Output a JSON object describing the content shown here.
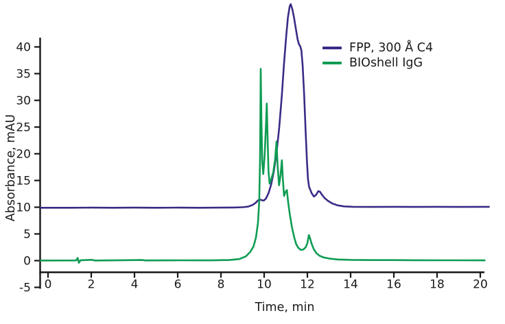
{
  "axes": {
    "x_label": "Time, min",
    "y_label": "Absorbance, mAU"
  },
  "legend": {
    "items": [
      {
        "label": "FPP, 300 Å C4",
        "color": "#3b2a86"
      },
      {
        "label": "BIOshell IgG",
        "color": "#0e9c53"
      }
    ]
  },
  "colors": {
    "axis": "#161616",
    "background": "#ffffff",
    "purple_trace": "#3b2a86",
    "green_trace": "#0e9c53"
  },
  "chart_data": {
    "type": "line",
    "title": "",
    "xlabel": "Time, min",
    "ylabel": "Absorbance, mAU",
    "xlim": [
      -0.4,
      20.4
    ],
    "ylim": [
      -5,
      48
    ],
    "x_ticks": [
      0,
      2,
      4,
      6,
      8,
      10,
      12,
      14,
      16,
      18,
      20
    ],
    "y_ticks": [
      -5,
      0,
      5,
      10,
      15,
      20,
      25,
      30,
      35,
      40
    ],
    "grid": false,
    "legend_position": "upper-right-inside",
    "series": [
      {
        "name": "FPP, 300 Å C4",
        "color": "#3b2a86",
        "baseline_mAU": 10,
        "main_peak_time_min": 11.2,
        "main_peak_mAU": 48,
        "points": [
          [
            -0.35,
            9.9
          ],
          [
            1,
            9.9
          ],
          [
            2,
            9.92
          ],
          [
            3,
            9.9
          ],
          [
            4,
            9.92
          ],
          [
            5,
            9.9
          ],
          [
            6,
            9.92
          ],
          [
            7,
            9.9
          ],
          [
            8,
            9.92
          ],
          [
            8.6,
            9.95
          ],
          [
            9.0,
            10.0
          ],
          [
            9.25,
            10.1
          ],
          [
            9.45,
            10.4
          ],
          [
            9.6,
            10.8
          ],
          [
            9.72,
            11.3
          ],
          [
            9.8,
            11.45
          ],
          [
            9.9,
            11.3
          ],
          [
            9.98,
            11.25
          ],
          [
            10.08,
            11.6
          ],
          [
            10.2,
            12.6
          ],
          [
            10.32,
            14.2
          ],
          [
            10.45,
            16.8
          ],
          [
            10.58,
            20.5
          ],
          [
            10.7,
            25
          ],
          [
            10.82,
            31
          ],
          [
            10.92,
            37
          ],
          [
            11.02,
            42
          ],
          [
            11.1,
            45.5
          ],
          [
            11.18,
            47.6
          ],
          [
            11.23,
            48.0
          ],
          [
            11.3,
            47.1
          ],
          [
            11.38,
            45.5
          ],
          [
            11.47,
            43.3
          ],
          [
            11.55,
            41.4
          ],
          [
            11.61,
            40.5
          ],
          [
            11.67,
            40.1
          ],
          [
            11.72,
            39.4
          ],
          [
            11.78,
            36.5
          ],
          [
            11.85,
            31
          ],
          [
            11.92,
            24
          ],
          [
            11.98,
            18.5
          ],
          [
            12.03,
            15.2
          ],
          [
            12.08,
            13.8
          ],
          [
            12.13,
            13.3
          ],
          [
            12.2,
            12.6
          ],
          [
            12.3,
            12.0
          ],
          [
            12.4,
            12.3
          ],
          [
            12.5,
            13.0
          ],
          [
            12.58,
            12.9
          ],
          [
            12.68,
            12.3
          ],
          [
            12.8,
            11.7
          ],
          [
            12.95,
            11.2
          ],
          [
            13.15,
            10.7
          ],
          [
            13.4,
            10.35
          ],
          [
            13.7,
            10.15
          ],
          [
            14.1,
            10.08
          ],
          [
            15,
            10.05
          ],
          [
            16,
            10.08
          ],
          [
            17,
            10.05
          ],
          [
            18,
            10.08
          ],
          [
            19,
            10.05
          ],
          [
            20.4,
            10.08
          ]
        ]
      },
      {
        "name": "BIOshell IgG",
        "color": "#0e9c53",
        "baseline_mAU": 0,
        "main_peak_time_min": 9.85,
        "main_peak_mAU": 36,
        "points": [
          [
            -0.35,
            0.02
          ],
          [
            1.3,
            0.04
          ],
          [
            1.37,
            0.5
          ],
          [
            1.43,
            -0.4
          ],
          [
            1.5,
            0.08
          ],
          [
            2.05,
            0.15
          ],
          [
            2.15,
            0.03
          ],
          [
            3,
            0.05
          ],
          [
            4.35,
            0.12
          ],
          [
            4.5,
            0.04
          ],
          [
            6,
            0.06
          ],
          [
            7.5,
            0.05
          ],
          [
            8.4,
            0.12
          ],
          [
            8.85,
            0.3
          ],
          [
            9.15,
            0.8
          ],
          [
            9.35,
            1.6
          ],
          [
            9.5,
            2.6
          ],
          [
            9.62,
            4.3
          ],
          [
            9.71,
            7
          ],
          [
            9.77,
            11
          ],
          [
            9.81,
            19
          ],
          [
            9.84,
            35.9
          ],
          [
            9.87,
            27
          ],
          [
            9.91,
            18.5
          ],
          [
            9.96,
            16.2
          ],
          [
            10.02,
            19.5
          ],
          [
            10.08,
            25
          ],
          [
            10.12,
            29.4
          ],
          [
            10.16,
            23
          ],
          [
            10.2,
            16.8
          ],
          [
            10.25,
            14.4
          ],
          [
            10.33,
            15.3
          ],
          [
            10.42,
            16.5
          ],
          [
            10.5,
            18.8
          ],
          [
            10.57,
            22.3
          ],
          [
            10.62,
            18
          ],
          [
            10.69,
            14.1
          ],
          [
            10.76,
            16
          ],
          [
            10.82,
            18.8
          ],
          [
            10.87,
            15
          ],
          [
            10.92,
            12.1
          ],
          [
            10.99,
            12.9
          ],
          [
            11.05,
            13.2
          ],
          [
            11.11,
            10.9
          ],
          [
            11.19,
            8.6
          ],
          [
            11.28,
            6.4
          ],
          [
            11.38,
            4.5
          ],
          [
            11.48,
            3.1
          ],
          [
            11.58,
            2.4
          ],
          [
            11.7,
            2.0
          ],
          [
            11.82,
            2.1
          ],
          [
            11.92,
            2.5
          ],
          [
            12.0,
            3.3
          ],
          [
            12.07,
            4.8
          ],
          [
            12.13,
            4.1
          ],
          [
            12.2,
            3.1
          ],
          [
            12.3,
            2.1
          ],
          [
            12.42,
            1.4
          ],
          [
            12.57,
            0.9
          ],
          [
            12.75,
            0.6
          ],
          [
            13.0,
            0.4
          ],
          [
            13.4,
            0.22
          ],
          [
            14,
            0.14
          ],
          [
            15,
            0.1
          ],
          [
            16,
            0.1
          ],
          [
            17,
            0.08
          ],
          [
            18,
            0.07
          ],
          [
            19,
            0.06
          ],
          [
            20.2,
            0.05
          ]
        ]
      }
    ]
  }
}
